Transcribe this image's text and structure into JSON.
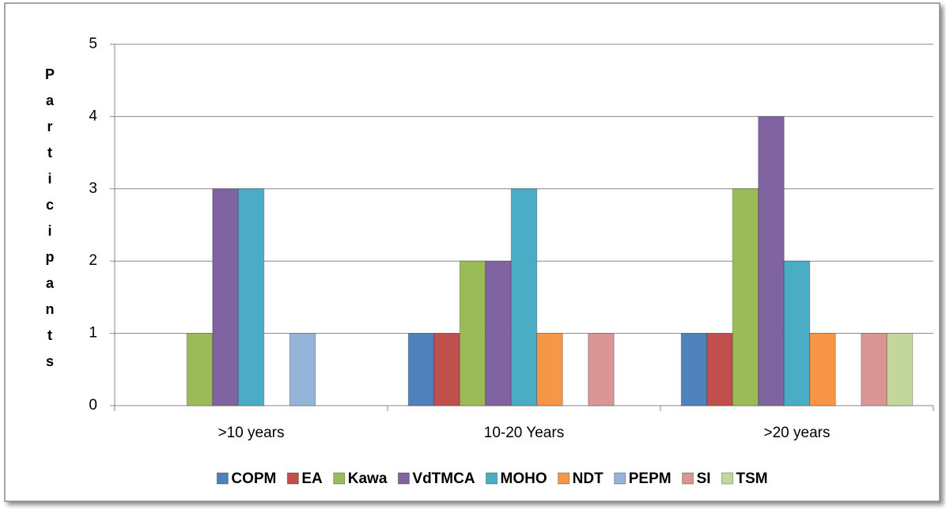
{
  "chart_data": {
    "type": "bar",
    "y_label": "Participants",
    "categories": [
      ">10 years",
      "10-20 Years",
      ">20 years"
    ],
    "series": [
      {
        "name": "COPM",
        "color": "#4f81bd",
        "values": [
          0,
          1,
          1
        ]
      },
      {
        "name": "EA",
        "color": "#c0504d",
        "values": [
          0,
          1,
          1
        ]
      },
      {
        "name": "Kawa",
        "color": "#9bbb59",
        "values": [
          1,
          2,
          3
        ]
      },
      {
        "name": "VdTMCA",
        "color": "#8064a2",
        "values": [
          3,
          2,
          4
        ]
      },
      {
        "name": "MOHO",
        "color": "#4bacc6",
        "values": [
          3,
          3,
          2
        ]
      },
      {
        "name": "NDT",
        "color": "#f79646",
        "values": [
          0,
          1,
          1
        ]
      },
      {
        "name": "PEPM",
        "color": "#95b3d7",
        "values": [
          1,
          0,
          0
        ]
      },
      {
        "name": "SI",
        "color": "#d99694",
        "values": [
          0,
          1,
          1
        ]
      },
      {
        "name": "TSM",
        "color": "#c3d69b",
        "values": [
          0,
          0,
          1
        ]
      }
    ],
    "ylim": [
      0,
      5
    ],
    "yticks": [
      0,
      1,
      2,
      3,
      4,
      5
    ],
    "grid": true,
    "legend": "bottom"
  }
}
